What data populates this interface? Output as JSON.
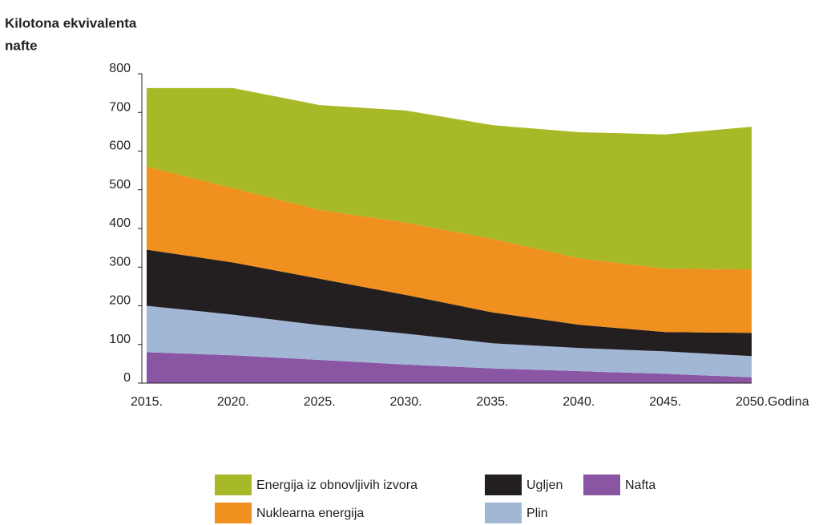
{
  "chart_data": {
    "type": "stacked_area",
    "y_label": [
      "Kilotona ekvivalenta",
      "nafte"
    ],
    "x_label": "Godina",
    "categories": [
      "2015.",
      "2020.",
      "2025.",
      "2030.",
      "2035.",
      "2040.",
      "2045.",
      "2050."
    ],
    "series": [
      {
        "name": "Nafta",
        "color": "#8a55a3",
        "values": [
          80,
          72,
          60,
          48,
          38,
          31,
          24,
          15
        ]
      },
      {
        "name": "Plin",
        "color": "#a2b6d6",
        "values": [
          120,
          105,
          90,
          80,
          65,
          60,
          58,
          55
        ]
      },
      {
        "name": "Ugljen",
        "color": "#231f20",
        "values": [
          145,
          135,
          120,
          100,
          80,
          60,
          50,
          60
        ]
      },
      {
        "name": "Nuklearna energija",
        "color": "#f0901e",
        "values": [
          215,
          192,
          178,
          187,
          190,
          172,
          164,
          164
        ]
      },
      {
        "name": "Energija iz obnovljivih izvora",
        "color": "#a8b928",
        "values": [
          203,
          259,
          271,
          290,
          294,
          326,
          347,
          369
        ]
      }
    ],
    "ylim": [
      0,
      800
    ],
    "yticks": [
      0,
      100,
      200,
      300,
      400,
      500,
      600,
      700,
      800
    ],
    "grid": false
  }
}
